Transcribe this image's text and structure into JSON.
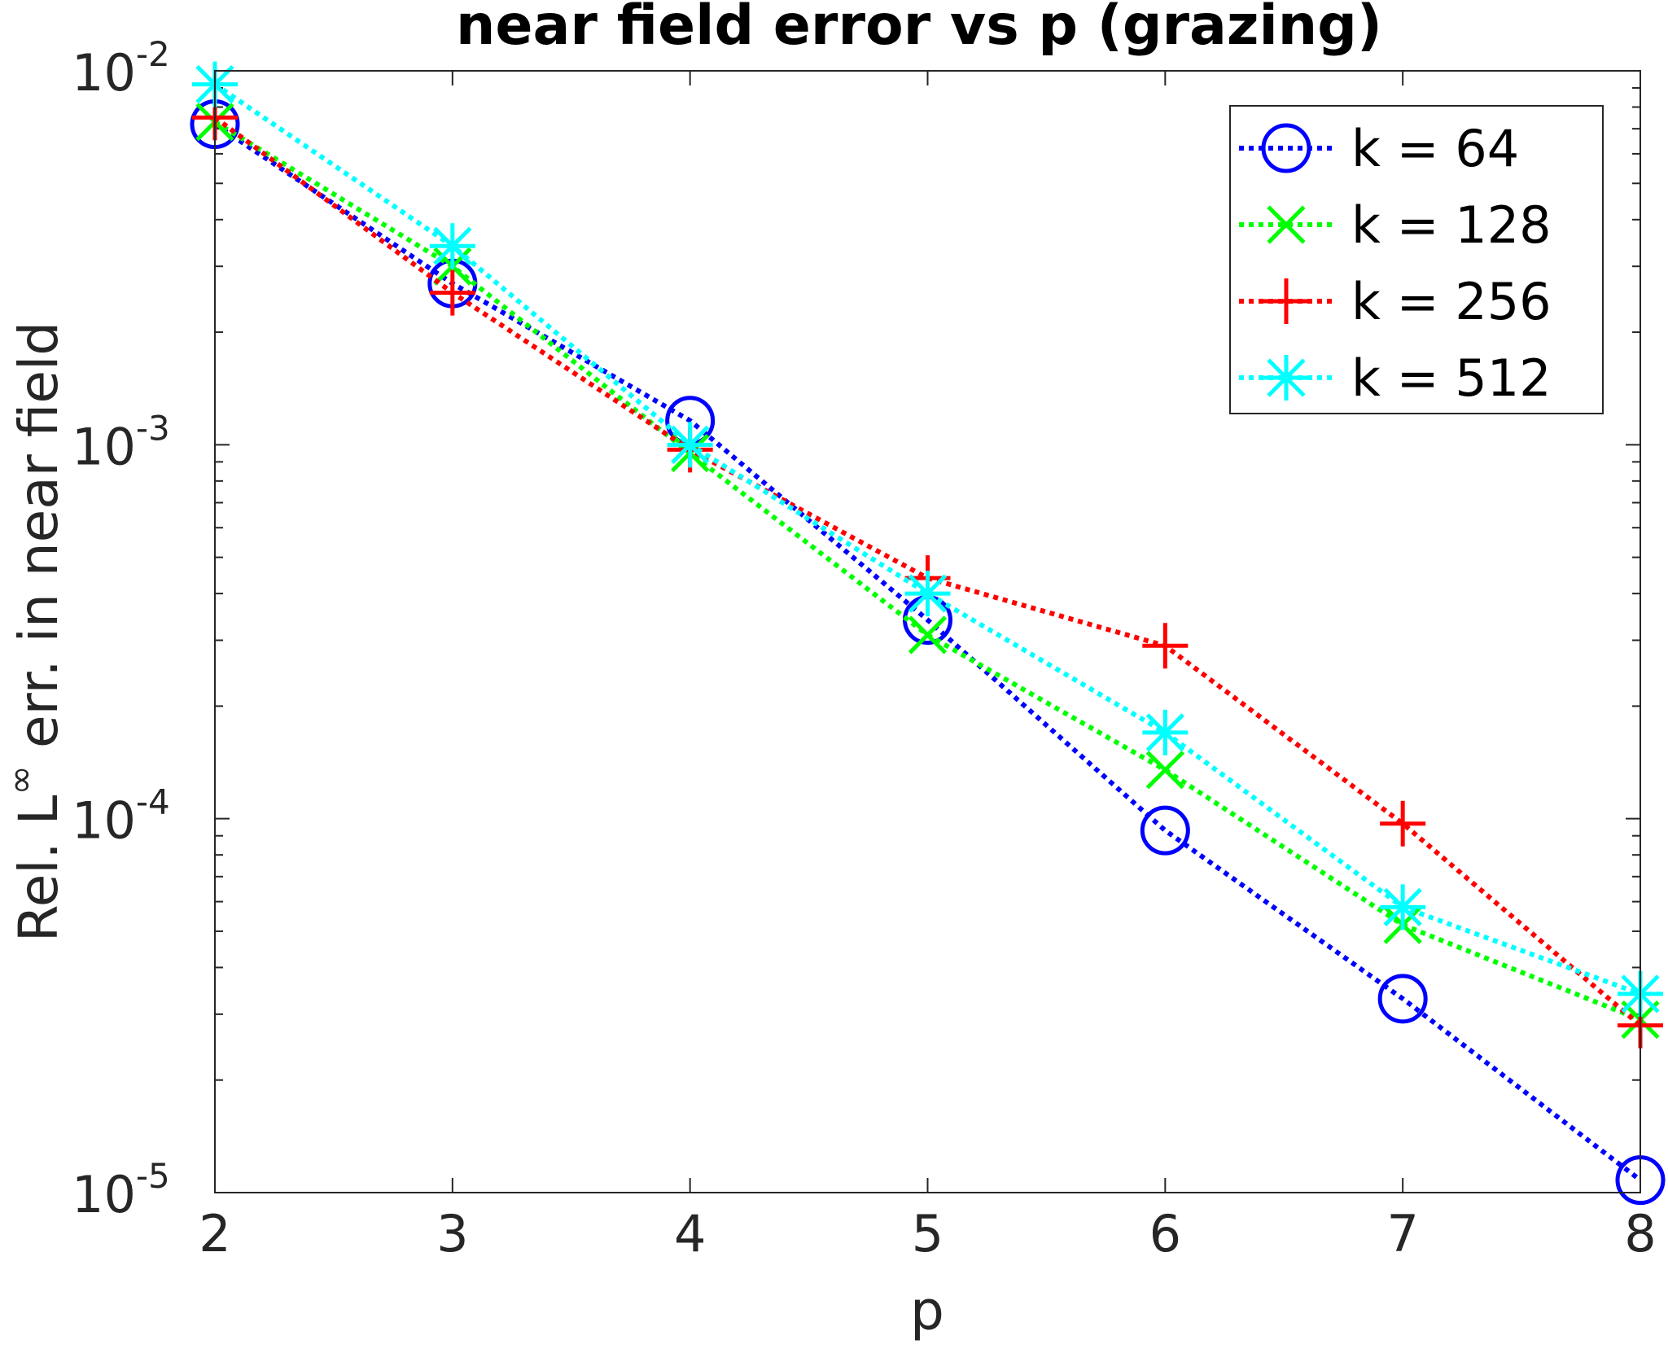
{
  "chart_data": {
    "type": "line",
    "title": "near field error vs p (grazing)",
    "xlabel": "p",
    "ylabel": {
      "prefix": "Rel. L",
      "superscript": "∞",
      "suffix": " err. in near field"
    },
    "xlim": [
      2,
      8
    ],
    "ylim": [
      1e-05,
      0.01
    ],
    "yscale": "log",
    "grid": false,
    "legend_position": "top-right",
    "x_ticks": [
      "2",
      "3",
      "4",
      "5",
      "6",
      "7",
      "8"
    ],
    "y_ticks": [
      {
        "base": "10",
        "exp": "-2",
        "value": 0.01
      },
      {
        "base": "10",
        "exp": "-3",
        "value": 0.001
      },
      {
        "base": "10",
        "exp": "-4",
        "value": 0.0001
      },
      {
        "base": "10",
        "exp": "-5",
        "value": 1e-05
      }
    ],
    "x": [
      2,
      3,
      4,
      5,
      6,
      7,
      8
    ],
    "series": [
      {
        "name": "k = 64",
        "color": "#0000ff",
        "marker": "circle",
        "values": [
          0.0072,
          0.0027,
          0.00116,
          0.00034,
          9.3e-05,
          3.3e-05,
          1.08e-05
        ]
      },
      {
        "name": "k = 128",
        "color": "#00ff00",
        "marker": "x",
        "values": [
          0.0073,
          0.003,
          0.00095,
          0.00031,
          0.000135,
          5.2e-05,
          2.9e-05
        ]
      },
      {
        "name": "k = 256",
        "color": "#ff0000",
        "marker": "plus",
        "values": [
          0.0075,
          0.00255,
          0.00097,
          0.00044,
          0.00029,
          9.7e-05,
          2.8e-05
        ]
      },
      {
        "name": "k = 512",
        "color": "#00ffff",
        "marker": "star",
        "values": [
          0.0092,
          0.0034,
          0.001,
          0.0004,
          0.00017,
          5.8e-05,
          3.4e-05
        ]
      }
    ]
  }
}
